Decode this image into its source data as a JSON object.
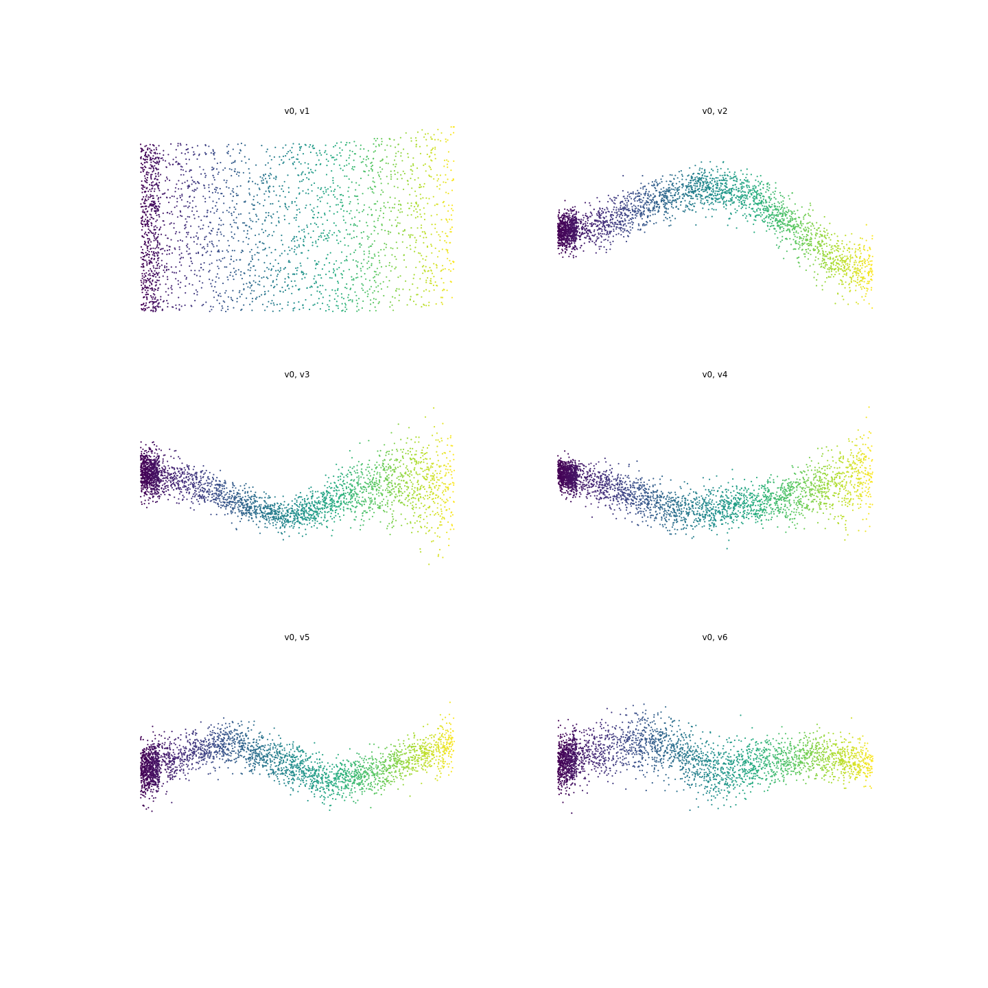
{
  "chart_data": [
    {
      "type": "scatter",
      "title": "v0, v1",
      "x_var": "v0",
      "y_var": "v1",
      "axes": "off",
      "grid": false,
      "colormap": "viridis",
      "color_by": "v0",
      "xlim": [
        0,
        1
      ],
      "ylim": [
        -0.05,
        1.05
      ],
      "point_count": 2600,
      "trend": {
        "x": [
          0,
          0.2,
          0.4,
          0.6,
          0.8,
          1.0
        ],
        "center": [
          0.5,
          0.5,
          0.5,
          0.5,
          0.52,
          0.58
        ],
        "spread": [
          0.46,
          0.46,
          0.46,
          0.46,
          0.48,
          0.5
        ]
      }
    },
    {
      "type": "scatter",
      "title": "v0, v2",
      "x_var": "v0",
      "y_var": "v2",
      "axes": "off",
      "grid": false,
      "colormap": "viridis",
      "color_by": "v0",
      "xlim": [
        0,
        1
      ],
      "ylim": [
        -0.05,
        1.05
      ],
      "point_count": 3000,
      "trend": {
        "x": [
          0,
          0.15,
          0.3,
          0.45,
          0.6,
          0.75,
          0.9,
          1.0
        ],
        "center": [
          0.47,
          0.52,
          0.64,
          0.72,
          0.68,
          0.5,
          0.3,
          0.25
        ],
        "spread": [
          0.08,
          0.1,
          0.1,
          0.1,
          0.1,
          0.11,
          0.13,
          0.15
        ]
      }
    },
    {
      "type": "scatter",
      "title": "v0, v3",
      "x_var": "v0",
      "y_var": "v3",
      "axes": "off",
      "grid": false,
      "colormap": "viridis",
      "color_by": "v0",
      "xlim": [
        0,
        1
      ],
      "ylim": [
        -0.05,
        1.05
      ],
      "point_count": 3000,
      "trend": {
        "x": [
          0,
          0.15,
          0.3,
          0.45,
          0.55,
          0.7,
          0.85,
          1.0
        ],
        "center": [
          0.6,
          0.55,
          0.45,
          0.35,
          0.4,
          0.52,
          0.55,
          0.5
        ],
        "spread": [
          0.1,
          0.09,
          0.08,
          0.06,
          0.08,
          0.14,
          0.2,
          0.28
        ]
      }
    },
    {
      "type": "scatter",
      "title": "v0, v4",
      "x_var": "v0",
      "y_var": "v4",
      "axes": "off",
      "grid": false,
      "colormap": "viridis",
      "color_by": "v0",
      "xlim": [
        0,
        1
      ],
      "ylim": [
        -0.05,
        1.05
      ],
      "point_count": 3000,
      "trend": {
        "x": [
          0,
          0.2,
          0.4,
          0.6,
          0.8,
          1.0
        ],
        "center": [
          0.6,
          0.5,
          0.38,
          0.42,
          0.5,
          0.6
        ],
        "spread": [
          0.07,
          0.1,
          0.1,
          0.1,
          0.12,
          0.22
        ]
      }
    },
    {
      "type": "scatter",
      "title": "v0, v5",
      "x_var": "v0",
      "y_var": "v5",
      "axes": "off",
      "grid": false,
      "colormap": "viridis",
      "color_by": "v0",
      "xlim": [
        0,
        1
      ],
      "ylim": [
        -0.05,
        1.05
      ],
      "point_count": 3000,
      "trend": {
        "x": [
          0,
          0.15,
          0.3,
          0.45,
          0.6,
          0.75,
          0.9,
          1.0
        ],
        "center": [
          0.4,
          0.5,
          0.56,
          0.45,
          0.35,
          0.4,
          0.5,
          0.55
        ],
        "spread": [
          0.12,
          0.1,
          0.1,
          0.1,
          0.09,
          0.1,
          0.1,
          0.12
        ]
      }
    },
    {
      "type": "scatter",
      "title": "v0, v6",
      "x_var": "v0",
      "y_var": "v6",
      "axes": "off",
      "grid": false,
      "colormap": "viridis",
      "color_by": "v0",
      "xlim": [
        0,
        1
      ],
      "ylim": [
        -0.05,
        1.05
      ],
      "point_count": 3000,
      "trend": {
        "x": [
          0,
          0.2,
          0.35,
          0.5,
          0.65,
          0.8,
          1.0
        ],
        "center": [
          0.45,
          0.55,
          0.55,
          0.4,
          0.45,
          0.5,
          0.45
        ],
        "spread": [
          0.12,
          0.12,
          0.15,
          0.14,
          0.12,
          0.1,
          0.1
        ]
      }
    }
  ]
}
